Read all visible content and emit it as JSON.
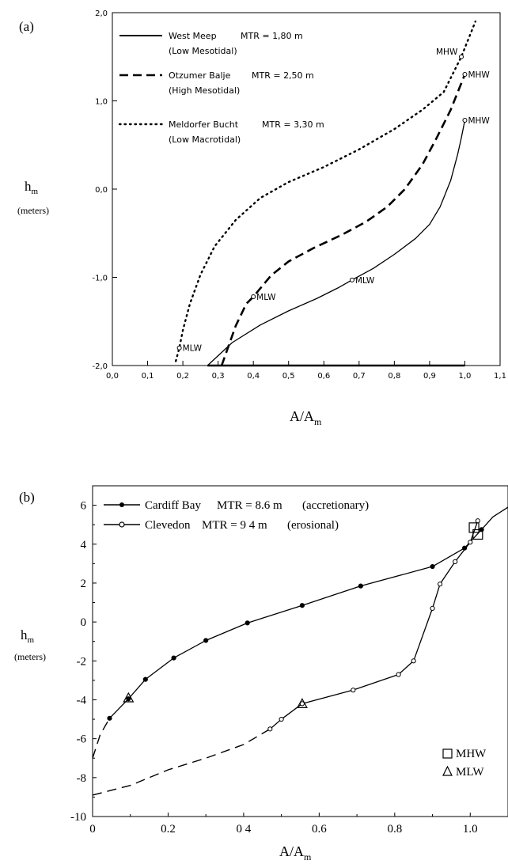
{
  "chart_data": [
    {
      "panel_label": "(a)",
      "type": "line",
      "xlabel": "A/A",
      "xlabel_sub": "m",
      "ylabel": "h",
      "ylabel_sub": "m",
      "ylabel_unit": "(meters)",
      "xlim": [
        0,
        1.1
      ],
      "ylim": [
        -2,
        2
      ],
      "xticks": [
        "0,0",
        "0,1",
        "0,2",
        "0,3",
        "0,4",
        "0,5",
        "0,6",
        "0,7",
        "0,8",
        "0,9",
        "1,0",
        "1,1"
      ],
      "yticks": [
        "2,0",
        "1,0",
        "0,0",
        "-1,0",
        "-2,0"
      ],
      "legend_position": "top-left",
      "series": [
        {
          "name": "West Meep",
          "mtr": "MTR = 1,80 m",
          "regime": "(Low Mesotidal)",
          "style": "solid",
          "x": [
            0.27,
            0.34,
            0.42,
            0.5,
            0.58,
            0.64,
            0.68,
            0.74,
            0.8,
            0.86,
            0.9,
            0.93,
            0.96,
            0.98,
            0.99,
            1.0
          ],
          "y": [
            -2.0,
            -1.74,
            -1.54,
            -1.38,
            -1.24,
            -1.12,
            -1.03,
            -0.9,
            -0.74,
            -0.56,
            -0.4,
            -0.2,
            0.1,
            0.4,
            0.58,
            0.78
          ],
          "extension_x": [
            0.27,
            0.45,
            1.0
          ],
          "extension_y": [
            -2.0,
            -2.0,
            -2.0
          ]
        },
        {
          "name": "Otzumer Balje",
          "mtr": "MTR = 2,50 m",
          "regime": "(High Mesotidal)",
          "style": "dashed",
          "x": [
            0.31,
            0.35,
            0.38,
            0.4,
            0.45,
            0.5,
            0.57,
            0.65,
            0.72,
            0.78,
            0.83,
            0.88,
            0.92,
            0.96,
            0.98,
            1.0
          ],
          "y": [
            -2.0,
            -1.55,
            -1.3,
            -1.22,
            -0.98,
            -0.82,
            -0.67,
            -0.52,
            -0.37,
            -0.2,
            0.0,
            0.28,
            0.58,
            0.9,
            1.1,
            1.3
          ]
        },
        {
          "name": "Meldorfer Bucht",
          "mtr": "MTR = 3,30 m",
          "regime": "(Low Macrotidal)",
          "style": "dotted",
          "x": [
            0.18,
            0.19,
            0.2,
            0.22,
            0.25,
            0.29,
            0.35,
            0.42,
            0.5,
            0.6,
            0.7,
            0.8,
            0.88,
            0.94,
            0.99,
            1.01,
            1.03
          ],
          "y": [
            -1.95,
            -1.8,
            -1.6,
            -1.3,
            -0.97,
            -0.65,
            -0.35,
            -0.1,
            0.08,
            0.25,
            0.45,
            0.68,
            0.9,
            1.1,
            1.5,
            1.7,
            1.9
          ]
        }
      ],
      "annotations": [
        {
          "text": "MLW",
          "x": 0.19,
          "y": -1.8,
          "marker": true
        },
        {
          "text": "MLW",
          "x": 0.4,
          "y": -1.22,
          "marker": true
        },
        {
          "text": "MLW",
          "x": 0.68,
          "y": -1.03,
          "marker": true
        },
        {
          "text": "MHW",
          "x": 1.0,
          "y": 0.78,
          "marker": true
        },
        {
          "text": "MHW",
          "x": 1.0,
          "y": 1.3,
          "marker": true
        },
        {
          "text": "MHW",
          "x": 0.99,
          "y": 1.5,
          "marker": true
        }
      ]
    },
    {
      "panel_label": "(b)",
      "type": "line",
      "xlabel": "A/A",
      "xlabel_sub": "m",
      "ylabel": "h",
      "ylabel_sub": "m",
      "ylabel_unit": "(meters)",
      "xlim": [
        0,
        1.1
      ],
      "ylim": [
        -10,
        7
      ],
      "xticks": [
        "0",
        "0.2",
        "0 4",
        "0.6",
        "0.8",
        "1.0"
      ],
      "yticks": [
        "6",
        "4",
        "2",
        "0",
        "-2",
        "-4",
        "-6",
        "-8",
        "-10"
      ],
      "legend_position": "top-left",
      "series": [
        {
          "name": "Cardiff Bay",
          "mtr": "MTR = 8.6 m",
          "regime": "(accretionary)",
          "marker": "filled-circle",
          "x": [
            0.045,
            0.095,
            0.14,
            0.215,
            0.3,
            0.41,
            0.555,
            0.71,
            0.9,
            0.985,
            1.03
          ],
          "y": [
            -4.95,
            -3.95,
            -2.95,
            -1.85,
            -0.95,
            -0.05,
            0.85,
            1.85,
            2.85,
            3.8,
            4.75
          ],
          "curve_x": [
            0.045,
            0.095,
            0.14,
            0.215,
            0.3,
            0.41,
            0.555,
            0.71,
            0.9,
            0.985,
            1.03,
            1.06,
            1.1
          ],
          "curve_y": [
            -4.95,
            -3.95,
            -2.95,
            -1.85,
            -0.95,
            -0.05,
            0.85,
            1.85,
            2.85,
            3.8,
            4.75,
            5.4,
            5.9
          ],
          "extension_x": [
            0.0,
            0.02,
            0.045
          ],
          "extension_y": [
            -7.0,
            -5.8,
            -4.95
          ]
        },
        {
          "name": "Clevedon",
          "mtr": "MTR = 9 4 m",
          "regime": "(erosional)",
          "marker": "open-circle",
          "x": [
            0.47,
            0.5,
            0.555,
            0.69,
            0.81,
            0.85,
            0.9,
            0.92,
            0.96,
            1.0,
            1.02
          ],
          "y": [
            -5.5,
            -5.0,
            -4.2,
            -3.5,
            -2.7,
            -2.0,
            0.7,
            1.95,
            3.1,
            4.1,
            5.2
          ],
          "extension_x": [
            0.0,
            0.1,
            0.2,
            0.3,
            0.4,
            0.47
          ],
          "extension_y": [
            -8.9,
            -8.4,
            -7.6,
            -7.0,
            -6.3,
            -5.5
          ]
        }
      ],
      "mhw_points": [
        [
          1.01,
          4.85
        ],
        [
          1.02,
          4.5
        ]
      ],
      "mlw_points": [
        [
          0.095,
          -3.9
        ],
        [
          0.555,
          -4.2
        ]
      ],
      "marker_legend": [
        "MHW",
        "MLW"
      ]
    }
  ]
}
